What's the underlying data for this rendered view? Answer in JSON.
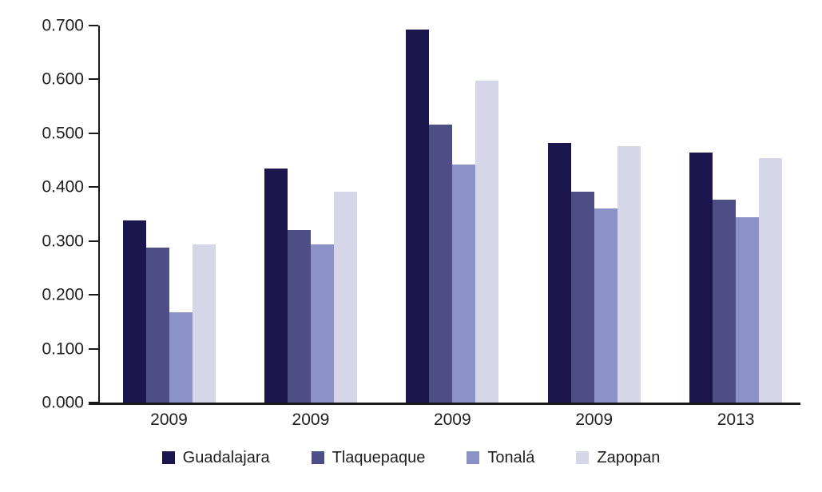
{
  "chart_data": {
    "type": "bar",
    "title": "",
    "xlabel": "",
    "ylabel": "",
    "categories": [
      "2009",
      "2009",
      "2009",
      "2009",
      "2013"
    ],
    "series": [
      {
        "name": "Guadalajara",
        "color": "#1b164e",
        "values": [
          0.338,
          0.435,
          0.692,
          0.482,
          0.464
        ]
      },
      {
        "name": "Tlaquepaque",
        "color": "#4e4d86",
        "values": [
          0.288,
          0.321,
          0.516,
          0.391,
          0.377
        ]
      },
      {
        "name": "Tonalá",
        "color": "#8c92c8",
        "values": [
          0.168,
          0.293,
          0.442,
          0.36,
          0.344
        ]
      },
      {
        "name": "Zapopan",
        "color": "#d5d7e9",
        "values": [
          0.293,
          0.392,
          0.598,
          0.476,
          0.454
        ]
      }
    ],
    "ylim": [
      0,
      0.7
    ],
    "ytick_step": 0.1,
    "ytick_labels": [
      "0.000",
      "0.100",
      "0.200",
      "0.300",
      "0.400",
      "0.500",
      "0.600",
      "0.700"
    ],
    "grid": false,
    "legend_position": "bottom"
  },
  "colors": {
    "axis": "#1a1a1a",
    "text": "#1f1f1f",
    "background": "#ffffff"
  }
}
